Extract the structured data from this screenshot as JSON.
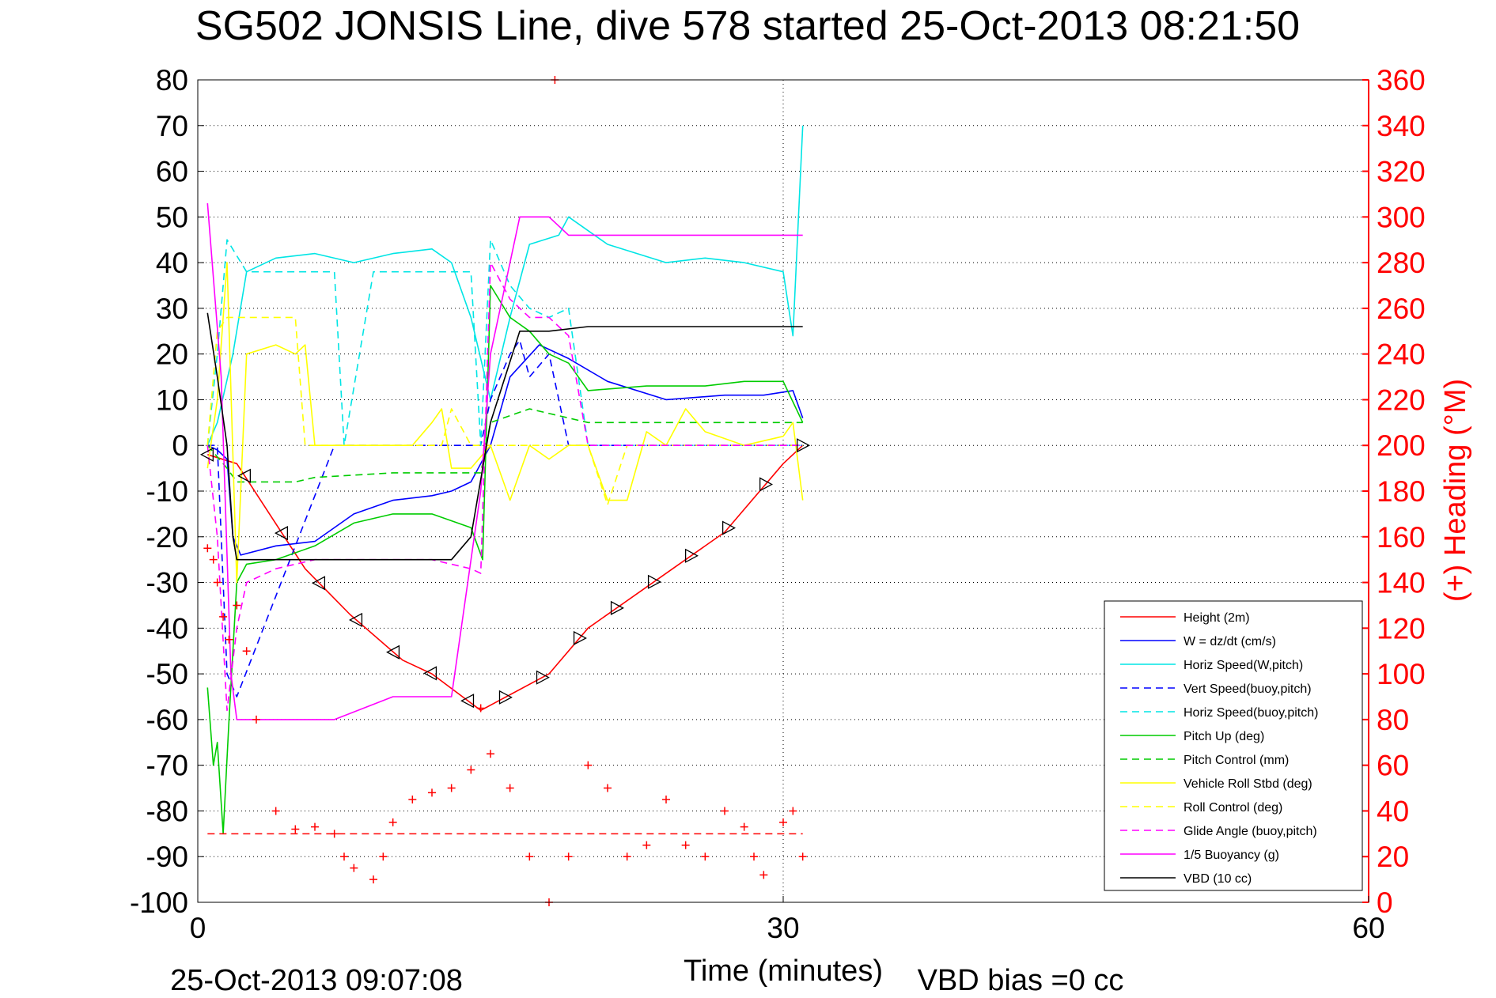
{
  "title": "SG502 JONSIS Line, dive 578 started 25-Oct-2013 08:21:50",
  "footer": {
    "timestamp": "25-Oct-2013 09:07:08",
    "vbd_bias": "VBD bias =0 cc"
  },
  "chart_data": {
    "type": "line",
    "title": "SG502 JONSIS Line, dive 578 started 25-Oct-2013 08:21:50",
    "xlabel": "Time (minutes)",
    "ylabel": "",
    "y2label": "(+) Heading (°M)",
    "xlim": [
      0,
      60
    ],
    "ylim": [
      -100,
      80
    ],
    "y2lim": [
      0,
      360
    ],
    "x_ticks": [
      "0",
      "30",
      "60"
    ],
    "y_ticks": [
      "80",
      "70",
      "60",
      "50",
      "40",
      "30",
      "20",
      "10",
      "0",
      "-10",
      "-20",
      "-30",
      "-40",
      "-50",
      "-60",
      "-70",
      "-80",
      "-90",
      "-100"
    ],
    "y2_ticks": [
      "360",
      "340",
      "320",
      "300",
      "280",
      "260",
      "240",
      "220",
      "200",
      "180",
      "160",
      "140",
      "120",
      "100",
      "80",
      "60",
      "40",
      "20",
      "0"
    ],
    "grid": "y-dotted",
    "vline_x": 30,
    "legend_position": "bottom-right",
    "colors": {
      "axis_right": "#ff0000",
      "height": "#ff0000",
      "w": "#0000ff",
      "horiz_speed": "#00e5e5",
      "pitch": "#00cc00",
      "roll": "#ffff00",
      "glide": "#ff00ff",
      "vbd": "#000000"
    },
    "series": [
      {
        "name": "Height (2m)",
        "color": "#ff0000",
        "style": "solid",
        "x": [
          0.5,
          2,
          5.5,
          7.8,
          10.5,
          12,
          14.5,
          18,
          20,
          23,
          27,
          30,
          31
        ],
        "y": [
          -2,
          -4,
          -27,
          -37,
          -47,
          -50,
          -58,
          -50,
          -40,
          -31,
          -19,
          -4,
          0
        ]
      },
      {
        "name": "W = dz/dt (cm/s)",
        "color": "#0000ff",
        "style": "solid",
        "x": [
          0.5,
          1,
          1.5,
          1.8,
          2.2,
          4,
          6,
          8,
          10,
          12,
          13,
          14,
          15,
          16,
          17.5,
          19,
          21,
          24,
          27,
          29,
          30.5,
          31
        ],
        "y": [
          0,
          -1,
          -3,
          -20,
          -24,
          -22,
          -21,
          -15,
          -12,
          -11,
          -10,
          -8,
          0,
          15,
          22,
          19,
          14,
          10,
          11,
          11,
          12,
          6
        ]
      },
      {
        "name": "Horiz Speed(W,pitch)",
        "color": "#00e5e5",
        "style": "solid",
        "x": [
          0.5,
          1,
          1.8,
          2.5,
          4,
          6,
          8,
          10,
          12,
          13,
          14,
          15,
          16,
          17,
          18.5,
          19,
          21,
          24,
          26,
          28,
          30,
          30.5,
          31
        ],
        "y": [
          0,
          5,
          20,
          38,
          41,
          42,
          40,
          42,
          43,
          40,
          28,
          10,
          28,
          44,
          46,
          50,
          44,
          40,
          41,
          40,
          38,
          24,
          70
        ]
      },
      {
        "name": "Vert Speed(buoy,pitch)",
        "color": "#0000ff",
        "style": "dashed",
        "x": [
          0.5,
          1,
          1.5,
          2,
          7,
          14.5,
          15,
          16,
          16.5,
          17,
          18,
          19,
          20,
          31
        ],
        "y": [
          0,
          0,
          -50,
          -55,
          0,
          0,
          10,
          20,
          23,
          15,
          20,
          0,
          0,
          0
        ]
      },
      {
        "name": "Horiz Speed(buoy,pitch)",
        "color": "#00e5e5",
        "style": "dashed",
        "x": [
          0.5,
          1,
          1.5,
          2.5,
          6,
          7,
          7.5,
          9,
          14,
          14.5,
          15,
          16,
          17,
          18,
          19,
          20,
          31
        ],
        "y": [
          0,
          20,
          45,
          38,
          38,
          38,
          0,
          38,
          38,
          0,
          45,
          35,
          30,
          28,
          30,
          0,
          0
        ]
      },
      {
        "name": "Pitch Up (deg)",
        "color": "#00cc00",
        "style": "solid",
        "x": [
          0.5,
          0.8,
          1,
          1.3,
          1.6,
          2,
          2.5,
          4,
          6,
          8,
          10,
          12,
          14,
          14.6,
          15,
          16,
          17,
          18,
          19,
          20,
          23,
          26,
          28,
          30,
          31
        ],
        "y": [
          -53,
          -70,
          -65,
          -85,
          -60,
          -30,
          -26,
          -25,
          -22,
          -17,
          -15,
          -15,
          -18,
          -25,
          35,
          28,
          25,
          20,
          18,
          12,
          13,
          13,
          14,
          14,
          5
        ]
      },
      {
        "name": "Pitch Control (mm)",
        "color": "#00cc00",
        "style": "dashed",
        "x": [
          0.5,
          1.5,
          2,
          5,
          6,
          10,
          14.5,
          15,
          17,
          19,
          20,
          31
        ],
        "y": [
          0,
          -5,
          -8,
          -8,
          -7,
          -6,
          -6,
          5,
          8,
          6,
          5,
          5
        ]
      },
      {
        "name": "Vehicle Roll Stbd (deg)",
        "color": "#ffff00",
        "style": "solid",
        "x": [
          0.5,
          1,
          1.5,
          2,
          2.5,
          4,
          5,
          5.5,
          6,
          8,
          10,
          11,
          12,
          12.5,
          13,
          14,
          15,
          16,
          17,
          18,
          19,
          20,
          21,
          22,
          23,
          24,
          25,
          26,
          28,
          30,
          30.5,
          31
        ],
        "y": [
          -5,
          10,
          40,
          -30,
          20,
          22,
          20,
          22,
          0,
          0,
          0,
          0,
          5,
          8,
          -5,
          -5,
          0,
          -12,
          0,
          -3,
          0,
          0,
          -12,
          -12,
          3,
          0,
          8,
          3,
          0,
          2,
          5,
          -12
        ]
      },
      {
        "name": "Roll Control (deg)",
        "color": "#ffff00",
        "style": "dashed",
        "x": [
          0.5,
          1,
          1.5,
          2,
          5,
          5.5,
          12.5,
          13,
          14,
          17,
          20,
          21,
          22,
          31
        ],
        "y": [
          0,
          25,
          28,
          28,
          28,
          0,
          0,
          8,
          0,
          0,
          0,
          -13,
          0,
          0
        ]
      },
      {
        "name": "Glide Angle (buoy,pitch)",
        "color": "#ff00ff",
        "style": "dashed",
        "x": [
          0.5,
          1,
          1.5,
          2,
          2.5,
          4,
          6,
          10,
          12,
          14,
          14.5,
          15,
          16,
          17,
          18,
          19,
          20,
          31
        ],
        "y": [
          0,
          -20,
          -58,
          -40,
          -30,
          -27,
          -25,
          -25,
          -25,
          -27,
          -28,
          40,
          32,
          28,
          28,
          24,
          0,
          0
        ]
      },
      {
        "name": "1/5 Buoyancy (g)",
        "color": "#ff00ff",
        "style": "solid",
        "x": [
          0.5,
          1.2,
          1.7,
          2,
          7,
          10,
          12.5,
          13,
          14.5,
          15,
          16.5,
          18,
          19,
          20,
          31
        ],
        "y": [
          53,
          15,
          -50,
          -60,
          -60,
          -55,
          -55,
          -55,
          -10,
          20,
          50,
          50,
          46,
          46,
          46
        ]
      },
      {
        "name": "VBD (10 cc)",
        "color": "#000000",
        "style": "solid",
        "x": [
          0.5,
          1,
          1.5,
          1.8,
          2,
          13,
          14,
          15,
          16.5,
          18,
          20,
          31
        ],
        "y": [
          29,
          15,
          0,
          -20,
          -25,
          -25,
          -20,
          5,
          25,
          25,
          26,
          26
        ]
      }
    ],
    "heading": {
      "name": "Heading",
      "color": "#ff0000",
      "marker": "+",
      "axis": "right",
      "x": [
        0.5,
        0.8,
        1,
        1.3,
        1.6,
        2,
        2.5,
        3,
        4,
        5,
        6,
        7,
        7.5,
        8,
        9,
        9.5,
        10,
        11,
        12,
        13,
        14,
        14.5,
        15,
        16,
        17,
        18,
        18.3,
        19,
        20,
        21,
        22,
        23,
        24,
        25,
        26,
        27,
        28,
        28.5,
        29,
        30,
        30.5,
        31
      ],
      "y": [
        155,
        150,
        140,
        125,
        115,
        130,
        110,
        80,
        40,
        32,
        33,
        30,
        20,
        15,
        10,
        20,
        35,
        45,
        48,
        50,
        58,
        85,
        65,
        50,
        20,
        0,
        360,
        20,
        60,
        50,
        20,
        25,
        45,
        25,
        20,
        40,
        33,
        20,
        12,
        35,
        40,
        20
      ],
      "reference_line": 30
    }
  }
}
